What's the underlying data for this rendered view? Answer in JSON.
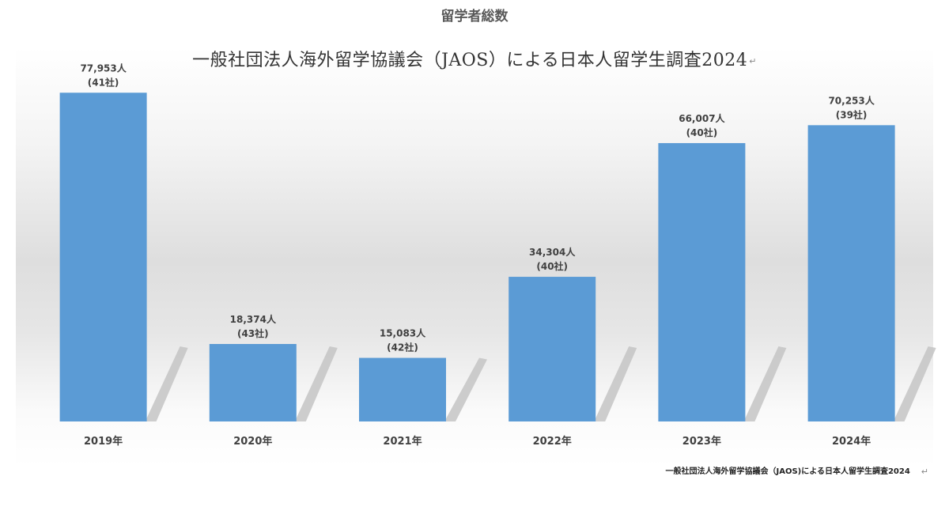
{
  "chart_data": {
    "type": "bar",
    "title": "留学者総数",
    "subtitle": "一般社団法人海外留学協議会（JAOS）による日本人留学生調査2024",
    "categories": [
      "2019年",
      "2020年",
      "2021年",
      "2022年",
      "2023年",
      "2024年"
    ],
    "values": [
      77953,
      18374,
      15083,
      34304,
      66007,
      70253
    ],
    "value_labels": [
      "77,953人",
      "18,374人",
      "15,083人",
      "34,304人",
      "66,007人",
      "70,253人"
    ],
    "company_labels": [
      "(41社)",
      "(43社)",
      "(42社)",
      "(40社)",
      "(40社)",
      "(39社)"
    ],
    "ylim": [
      0,
      78000
    ],
    "grid": false,
    "legend": "none",
    "bar_color": "#5b9bd5",
    "shadow_color": "#c4c4c4"
  },
  "source_note": "一般社団法人海外留学協議会（JAOS)による日本人留学生調査2024",
  "return_mark": "↵"
}
